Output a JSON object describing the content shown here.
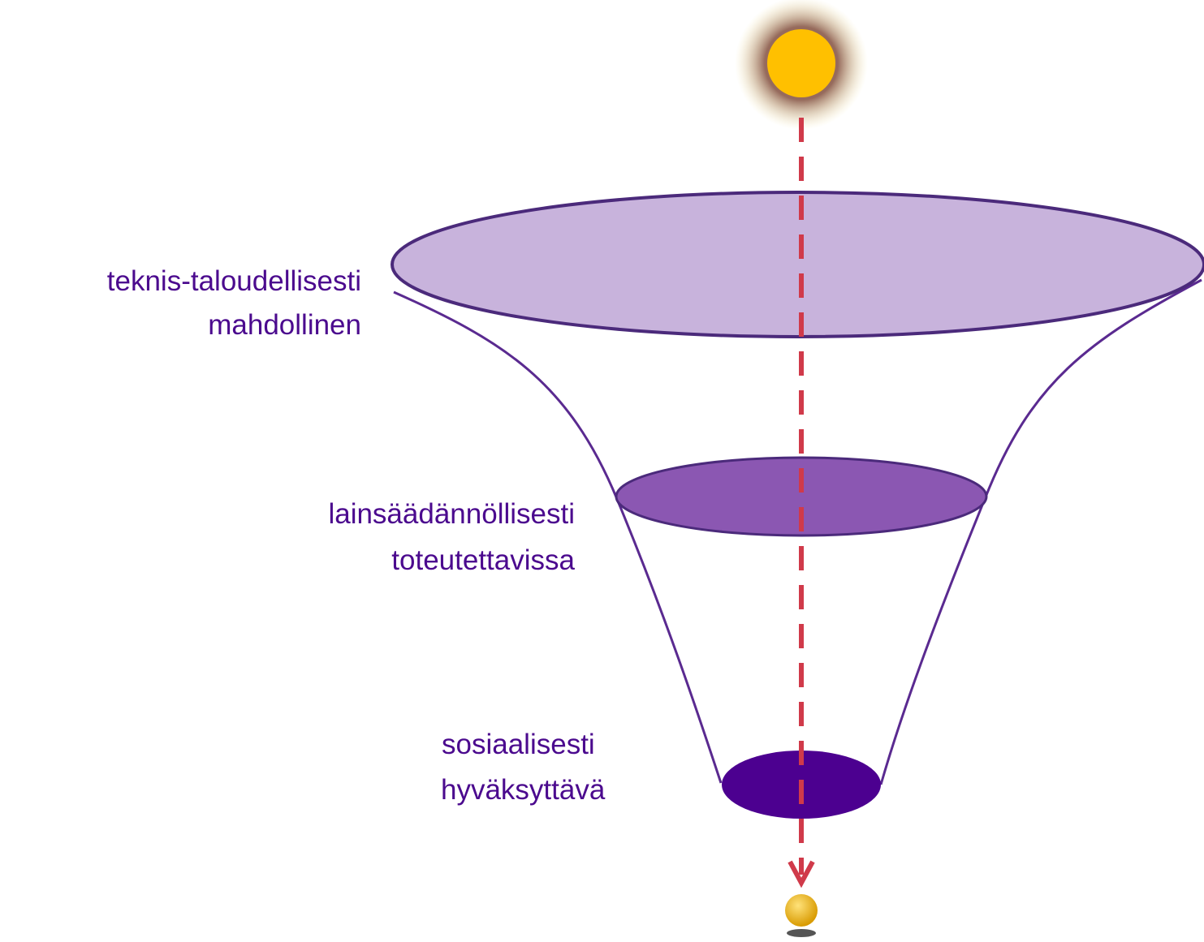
{
  "levels": [
    {
      "lines": [
        "teknis-taloudellisesti",
        "mahdollinen"
      ]
    },
    {
      "lines": [
        "lainsäädännöllisesti",
        "toteutettavissa"
      ]
    },
    {
      "lines": [
        "sosiaalisesti",
        "hyväksyttävä"
      ]
    }
  ]
}
